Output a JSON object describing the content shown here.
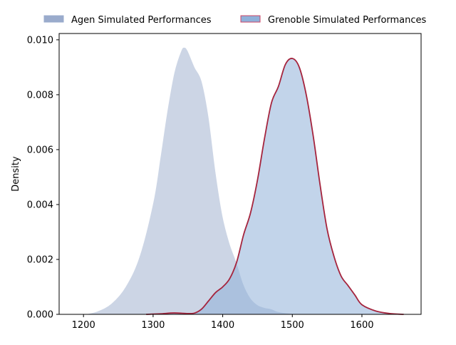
{
  "chart_data": {
    "type": "area",
    "title": "",
    "xlabel": "",
    "ylabel": "Density",
    "xlim": [
      1165,
      1685
    ],
    "ylim": [
      0,
      0.01023
    ],
    "x_ticks": [
      1200,
      1300,
      1400,
      1500,
      1600
    ],
    "y_ticks": [
      0.0,
      0.002,
      0.004,
      0.006,
      0.008,
      0.01
    ],
    "y_tick_labels": [
      "0.000",
      "0.002",
      "0.004",
      "0.006",
      "0.008",
      "0.010"
    ],
    "grid": false,
    "legend_position": "top, outside plot, horizontal",
    "series": [
      {
        "name": "Agen Simulated Performances",
        "fill_color": "#9aabcc",
        "fill_opacity": 0.5,
        "line_color": "#ffffff",
        "legend_fill": "#9aabcc",
        "legend_edge": "#9aabcc",
        "points": [
          [
            1200,
            0.0
          ],
          [
            1220,
            0.00012
          ],
          [
            1240,
            0.0004
          ],
          [
            1260,
            0.001
          ],
          [
            1280,
            0.0021
          ],
          [
            1300,
            0.0041
          ],
          [
            1310,
            0.0057
          ],
          [
            1320,
            0.0074
          ],
          [
            1330,
            0.0088
          ],
          [
            1340,
            0.0096
          ],
          [
            1345,
            0.00973
          ],
          [
            1350,
            0.0096
          ],
          [
            1360,
            0.009
          ],
          [
            1370,
            0.0085
          ],
          [
            1380,
            0.0072
          ],
          [
            1390,
            0.0052
          ],
          [
            1400,
            0.0036
          ],
          [
            1410,
            0.0026
          ],
          [
            1420,
            0.0019
          ],
          [
            1430,
            0.0011
          ],
          [
            1440,
            0.0006
          ],
          [
            1450,
            0.00035
          ],
          [
            1460,
            0.00025
          ],
          [
            1470,
            0.0002
          ],
          [
            1480,
            0.0001
          ],
          [
            1500,
            3e-05
          ],
          [
            1520,
            0.0
          ]
        ]
      },
      {
        "name": "Grenoble Simulated Performances",
        "fill_color": "#8fb0d9",
        "fill_opacity": 0.55,
        "line_color": "#a5243d",
        "legend_fill": "#8fb0d9",
        "legend_edge": "#cc4466",
        "points": [
          [
            1290,
            0.0
          ],
          [
            1310,
            2e-05
          ],
          [
            1330,
            5e-05
          ],
          [
            1350,
            3e-05
          ],
          [
            1360,
            5e-05
          ],
          [
            1370,
            0.0002
          ],
          [
            1380,
            0.0005
          ],
          [
            1390,
            0.0008
          ],
          [
            1400,
            0.001
          ],
          [
            1410,
            0.0013
          ],
          [
            1420,
            0.0019
          ],
          [
            1430,
            0.0029
          ],
          [
            1440,
            0.0037
          ],
          [
            1450,
            0.0049
          ],
          [
            1460,
            0.0064
          ],
          [
            1470,
            0.0077
          ],
          [
            1480,
            0.0083
          ],
          [
            1490,
            0.0091
          ],
          [
            1500,
            0.00932
          ],
          [
            1510,
            0.009
          ],
          [
            1520,
            0.008
          ],
          [
            1530,
            0.0065
          ],
          [
            1540,
            0.0047
          ],
          [
            1550,
            0.0031
          ],
          [
            1560,
            0.0021
          ],
          [
            1570,
            0.0014
          ],
          [
            1580,
            0.00105
          ],
          [
            1590,
            0.0007
          ],
          [
            1600,
            0.00035
          ],
          [
            1620,
            0.00012
          ],
          [
            1640,
            3e-05
          ],
          [
            1660,
            0.0
          ]
        ]
      }
    ]
  }
}
